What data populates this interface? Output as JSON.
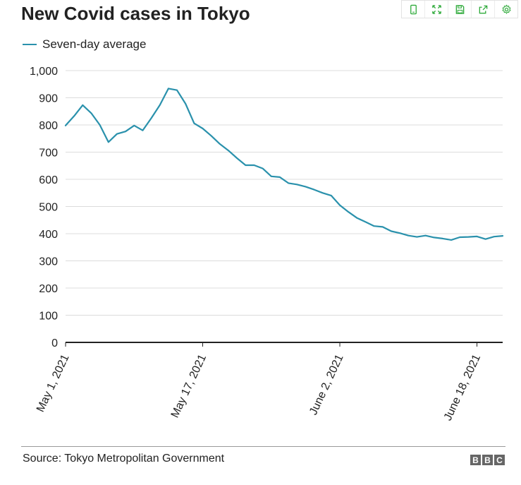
{
  "toolbar": {
    "icons": [
      "tablet-icon",
      "expand-icon",
      "save-icon",
      "share-icon",
      "settings-icon"
    ]
  },
  "chart_data": {
    "type": "line",
    "title": "New Covid cases in Tokyo",
    "xlabel": "",
    "ylabel": "",
    "ylim": [
      0,
      1000
    ],
    "yticks": [
      0,
      100,
      200,
      300,
      400,
      500,
      600,
      700,
      800,
      900,
      1000
    ],
    "ytick_labels": [
      "0",
      "100",
      "200",
      "300",
      "400",
      "500",
      "600",
      "700",
      "800",
      "900",
      "1,000"
    ],
    "xtick_labels": [
      "May 1, 2021",
      "May 17, 2021",
      "June 2, 2021",
      "June 18, 2021"
    ],
    "xtick_days": [
      0,
      16,
      32,
      48
    ],
    "grid": true,
    "legend_position": "top-left",
    "series": [
      {
        "name": "Seven-day average",
        "color": "#2a91ac",
        "x_start": "May 1, 2021",
        "values": [
          798,
          833,
          873,
          843,
          800,
          737,
          767,
          776,
          798,
          780,
          825,
          873,
          934,
          928,
          878,
          806,
          787,
          760,
          730,
          706,
          678,
          652,
          652,
          640,
          611,
          608,
          586,
          581,
          573,
          562,
          550,
          540,
          505,
          480,
          458,
          443,
          428,
          425,
          409,
          402,
          393,
          388,
          393,
          386,
          382,
          377,
          387,
          388,
          390,
          380,
          389,
          392
        ]
      }
    ]
  },
  "source": {
    "text": "Source: Tokyo Metropolitan Government"
  },
  "logo": {
    "letters": [
      "B",
      "B",
      "C"
    ]
  }
}
